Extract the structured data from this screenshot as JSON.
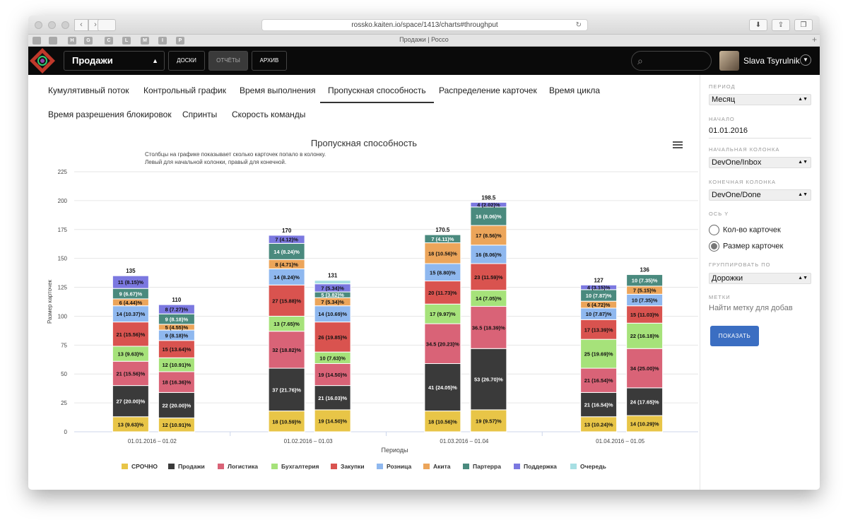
{
  "browser": {
    "url": "rossko.kaiten.io/space/1413/charts#throughput",
    "tab_title": "Продажи | Россо",
    "bookmarks": [
      "H",
      "G",
      "C",
      "L",
      "M",
      "I",
      "P"
    ]
  },
  "app": {
    "board": "Продажи",
    "buttons": {
      "boards": "ДОСКИ",
      "reports": "ОТЧЁТЫ",
      "archive": "АРХИВ"
    },
    "user": "Slava Tsyrulnik"
  },
  "tabs": [
    {
      "label": "Кумулятивный поток",
      "active": false
    },
    {
      "label": "Контрольный график",
      "active": false
    },
    {
      "label": "Время выполнения",
      "active": false
    },
    {
      "label": "Пропускная способность",
      "active": true
    },
    {
      "label": "Распределение карточек",
      "active": false
    },
    {
      "label": "Время цикла",
      "active": false
    },
    {
      "label": "Время разрешения блокировок",
      "active": false
    },
    {
      "label": "Спринты",
      "active": false
    },
    {
      "label": "Скорость команды",
      "active": false
    }
  ],
  "panel": {
    "period_label": "ПЕРИОД",
    "period_value": "Месяц",
    "start_label": "НАЧАЛО",
    "start_value": "01.01.2016",
    "start_col_label": "НАЧАЛЬНАЯ КОЛОНКА",
    "start_col_value": "DevOne/Inbox",
    "end_col_label": "КОНЕЧНАЯ КОЛОНКА",
    "end_col_value": "DevOne/Done",
    "y_label": "ОСЬ Y",
    "y_options": [
      {
        "label": "Кол-во карточек",
        "selected": false
      },
      {
        "label": "Размер карточек",
        "selected": true
      }
    ],
    "group_label": "ГРУППИРОВАТЬ ПО",
    "group_value": "Дорожки",
    "tags_label": "МЕТКИ",
    "tags_placeholder": "Найти метку для добав",
    "show_button": "ПОКАЗАТЬ"
  },
  "colors": {
    "СРОЧНО": "#e8c547",
    "Продажи": "#3a3a3a",
    "Логистика": "#d96377",
    "Бухгалтерия": "#a6e27a",
    "Закупки": "#d9534f",
    "Розница": "#8fb8ef",
    "Акита": "#eca55a",
    "Партерра": "#4a8a7e",
    "Поддержка": "#7b78e0",
    "Очередь": "#a7dfe3"
  },
  "chart_data": {
    "type": "bar",
    "stacked": true,
    "title": "Пропускная способность",
    "subtitle": "Столбцы на графике показывает сколько карточек попало в колонку.\nЛевый для начальной колонки, правый для конечной.",
    "xlabel": "Периоды",
    "ylabel": "Размер карточек",
    "ylim": [
      0,
      225
    ],
    "yticks": [
      0,
      25,
      50,
      75,
      100,
      125,
      150,
      175,
      200,
      225
    ],
    "grid": true,
    "legend_position": "bottom",
    "legend": [
      "СРОЧНО",
      "Продажи",
      "Логистика",
      "Бухгалтерия",
      "Закупки",
      "Розница",
      "Акита",
      "Партерра",
      "Поддержка",
      "Очередь"
    ],
    "periods": [
      {
        "label": "01.01.2016 – 01.02",
        "bars": [
          {
            "total": "135",
            "segments": [
              {
                "s": "СРОЧНО",
                "v": 13,
                "l": "13 (9.63)%"
              },
              {
                "s": "Продажи",
                "v": 27,
                "l": "27 (20.00)%"
              },
              {
                "s": "Логистика",
                "v": 21,
                "l": "21 (15.56)%"
              },
              {
                "s": "Бухгалтерия",
                "v": 13,
                "l": "13 (9.63)%"
              },
              {
                "s": "Закупки",
                "v": 21,
                "l": "21 (15.56)%"
              },
              {
                "s": "Розница",
                "v": 14,
                "l": "14 (10.37)%"
              },
              {
                "s": "Акита",
                "v": 6,
                "l": "6 (4.44)%"
              },
              {
                "s": "Партерра",
                "v": 9,
                "l": "9 (6.67)%"
              },
              {
                "s": "Поддержка",
                "v": 11,
                "l": "11 (8.15)%"
              }
            ]
          },
          {
            "total": "110",
            "segments": [
              {
                "s": "СРОЧНО",
                "v": 12,
                "l": "12 (10.91)%"
              },
              {
                "s": "Продажи",
                "v": 22,
                "l": "22 (20.00)%"
              },
              {
                "s": "Логистика",
                "v": 18,
                "l": "18 (16.36)%"
              },
              {
                "s": "Бухгалтерия",
                "v": 12,
                "l": "12 (10.91)%"
              },
              {
                "s": "Закупки",
                "v": 15,
                "l": "15 (13.64)%"
              },
              {
                "s": "Розница",
                "v": 9,
                "l": "9 (8.18)%"
              },
              {
                "s": "Акита",
                "v": 5,
                "l": "5 (4.55)%"
              },
              {
                "s": "Партерра",
                "v": 9,
                "l": "9 (8.18)%"
              },
              {
                "s": "Поддержка",
                "v": 8,
                "l": "8 (7.27)%"
              }
            ]
          }
        ]
      },
      {
        "label": "01.02.2016 – 01.03",
        "bars": [
          {
            "total": "170",
            "segments": [
              {
                "s": "СРОЧНО",
                "v": 18,
                "l": "18 (10.59)%"
              },
              {
                "s": "Продажи",
                "v": 37,
                "l": "37 (21.76)%"
              },
              {
                "s": "Логистика",
                "v": 32,
                "l": "32 (18.82)%"
              },
              {
                "s": "Бухгалтерия",
                "v": 13,
                "l": "13 (7.65)%"
              },
              {
                "s": "Закупки",
                "v": 27,
                "l": "27 (15.88)%"
              },
              {
                "s": "Розница",
                "v": 14,
                "l": "14 (8.24)%"
              },
              {
                "s": "Акита",
                "v": 8,
                "l": "8 (4.71)%"
              },
              {
                "s": "Партерра",
                "v": 14,
                "l": "14 (8.24)%"
              },
              {
                "s": "Поддержка",
                "v": 7,
                "l": "7 (4.12)%"
              }
            ]
          },
          {
            "total": "131",
            "segments": [
              {
                "s": "СРОЧНО",
                "v": 19,
                "l": "19 (14.50)%"
              },
              {
                "s": "Продажи",
                "v": 21,
                "l": "21 (16.03)%"
              },
              {
                "s": "Логистика",
                "v": 19,
                "l": "19 (14.50)%"
              },
              {
                "s": "Бухгалтерия",
                "v": 10,
                "l": "10 (7.63)%"
              },
              {
                "s": "Закупки",
                "v": 26,
                "l": "26 (19.85)%"
              },
              {
                "s": "Розница",
                "v": 14,
                "l": "14 (10.69)%"
              },
              {
                "s": "Акита",
                "v": 7,
                "l": "7 (5.34)%"
              },
              {
                "s": "Партерра",
                "v": 5,
                "l": "5 (3.82)%"
              },
              {
                "s": "Поддержка",
                "v": 7,
                "l": "7 (5.34)%"
              },
              {
                "s": "Очередь",
                "v": 3,
                "l": ""
              }
            ]
          }
        ]
      },
      {
        "label": "01.03.2016 – 01.04",
        "bars": [
          {
            "total": "170.5",
            "segments": [
              {
                "s": "СРОЧНО",
                "v": 18,
                "l": "18 (10.56)%"
              },
              {
                "s": "Продажи",
                "v": 41,
                "l": "41 (24.05)%"
              },
              {
                "s": "Логистика",
                "v": 34.5,
                "l": "34.5 (20.23)%"
              },
              {
                "s": "Бухгалтерия",
                "v": 17,
                "l": "17 (9.97)%"
              },
              {
                "s": "Закупки",
                "v": 20,
                "l": "20 (11.73)%"
              },
              {
                "s": "Розница",
                "v": 15,
                "l": "15 (8.80)%"
              },
              {
                "s": "Акита",
                "v": 18,
                "l": "18 (10.56)%"
              },
              {
                "s": "Партерра",
                "v": 7,
                "l": "7 (4.11)%"
              }
            ]
          },
          {
            "total": "198.5",
            "segments": [
              {
                "s": "СРОЧНО",
                "v": 19,
                "l": "19 (9.57)%"
              },
              {
                "s": "Продажи",
                "v": 53,
                "l": "53 (26.70)%"
              },
              {
                "s": "Логистика",
                "v": 36.5,
                "l": "36.5 (18.39)%"
              },
              {
                "s": "Бухгалтерия",
                "v": 14,
                "l": "14 (7.05)%"
              },
              {
                "s": "Закупки",
                "v": 23,
                "l": "23 (11.59)%"
              },
              {
                "s": "Розница",
                "v": 16,
                "l": "16 (8.06)%"
              },
              {
                "s": "Акита",
                "v": 17,
                "l": "17 (8.56)%"
              },
              {
                "s": "Партерра",
                "v": 16,
                "l": "16 (8.06)%"
              },
              {
                "s": "Поддержка",
                "v": 4,
                "l": "4 (2.02)%"
              }
            ]
          }
        ]
      },
      {
        "label": "01.04.2016 – 01.05",
        "bars": [
          {
            "total": "127",
            "segments": [
              {
                "s": "СРОЧНО",
                "v": 13,
                "l": "13 (10.24)%"
              },
              {
                "s": "Продажи",
                "v": 21,
                "l": "21 (16.54)%"
              },
              {
                "s": "Логистика",
                "v": 21,
                "l": "21 (16.54)%"
              },
              {
                "s": "Бухгалтерия",
                "v": 25,
                "l": "25 (19.69)%"
              },
              {
                "s": "Закупки",
                "v": 17,
                "l": "17 (13.39)%"
              },
              {
                "s": "Розница",
                "v": 10,
                "l": "10 (7.87)%"
              },
              {
                "s": "Акита",
                "v": 6,
                "l": "6 (4.72)%"
              },
              {
                "s": "Партерра",
                "v": 10,
                "l": "10 (7.87)%"
              },
              {
                "s": "Поддержка",
                "v": 4,
                "l": "4 (3.15)%"
              }
            ]
          },
          {
            "total": "136",
            "segments": [
              {
                "s": "СРОЧНО",
                "v": 14,
                "l": "14 (10.29)%"
              },
              {
                "s": "Продажи",
                "v": 24,
                "l": "24 (17.65)%"
              },
              {
                "s": "Логистика",
                "v": 34,
                "l": "34 (25.00)%"
              },
              {
                "s": "Бухгалтерия",
                "v": 22,
                "l": "22 (16.18)%"
              },
              {
                "s": "Закупки",
                "v": 15,
                "l": "15 (11.03)%"
              },
              {
                "s": "Розница",
                "v": 10,
                "l": "10 (7.35)%"
              },
              {
                "s": "Акита",
                "v": 7,
                "l": "7 (5.15)%"
              },
              {
                "s": "Партерра",
                "v": 10,
                "l": "10 (7.35)%"
              }
            ]
          }
        ]
      }
    ]
  }
}
